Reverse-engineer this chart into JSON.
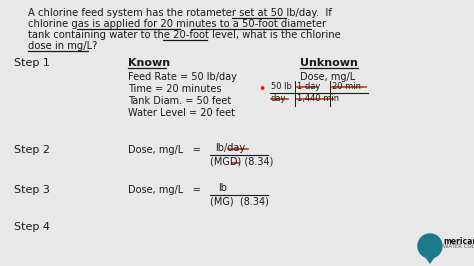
{
  "bg_color": "#e8e8e8",
  "font_color": "#1a1a1a",
  "red_color": "#cc2200",
  "dark_color": "#222222",
  "fs_q": 7.2,
  "fs_step": 8.0,
  "fs_known": 7.0,
  "fs_eq": 7.0,
  "step1_label": "Step 1",
  "step2_label": "Step 2",
  "step3_label": "Step 3",
  "step4_label": "Step 4",
  "known_label": "Known",
  "unknown_label": "Unknown",
  "known_items": [
    "Feed Rate = 50 lb/day",
    "Time = 20 minutes",
    "Tank Diam. = 50 feet",
    "Water Level = 20 feet"
  ],
  "unknown_item": "Dose, mg/L",
  "logo_blue": "#1a5276",
  "logo_teal": "#1a6e7a"
}
